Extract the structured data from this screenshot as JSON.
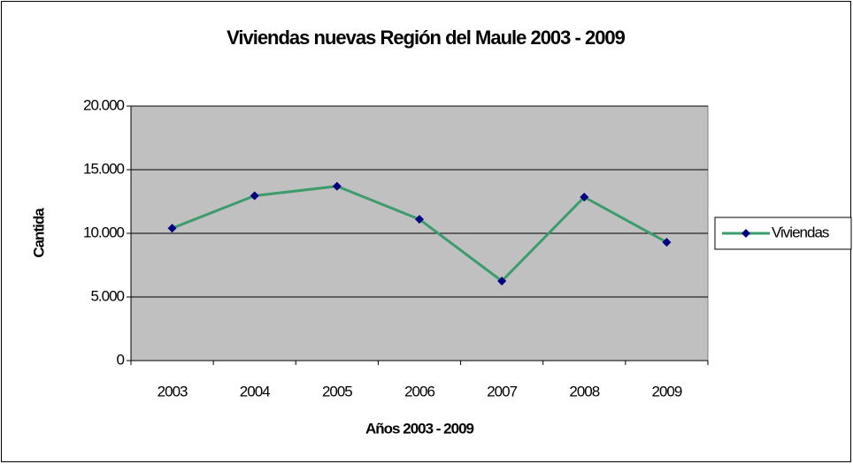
{
  "chart_data": {
    "type": "line",
    "title": "Viviendas nuevas Región del Maule 2003 - 2009",
    "x_label": "Años 2003 - 2009",
    "y_label": "Cantida",
    "categories": [
      "2003",
      "2004",
      "2005",
      "2006",
      "2007",
      "2008",
      "2009"
    ],
    "series": [
      {
        "name": "Viviendas",
        "color": "#3c9c6c",
        "marker_color": "#000080",
        "values": [
          10400,
          12950,
          13700,
          11100,
          6250,
          12850,
          9300
        ]
      }
    ],
    "ylim": [
      0,
      20000
    ],
    "yticks": [
      0,
      {
        "value": 5000,
        "label": "5.000"
      },
      {
        "value": 10000,
        "label": "10.000"
      },
      {
        "value": 15000,
        "label": "15.000"
      },
      {
        "value": 20000,
        "label": "20.000"
      }
    ],
    "grid": true,
    "plot_background": "#c0c0c0",
    "legend": "right"
  }
}
